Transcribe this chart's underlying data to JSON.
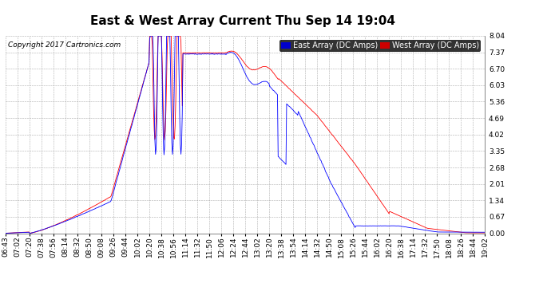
{
  "title": "East & West Array Current Thu Sep 14 19:04",
  "copyright": "Copyright 2017 Cartronics.com",
  "legend_east": "East Array (DC Amps)",
  "legend_west": "West Array (DC Amps)",
  "east_color": "#0000ff",
  "west_color": "#ff0000",
  "legend_east_bg": "#0000cc",
  "legend_west_bg": "#cc0000",
  "ylim": [
    0,
    8.04
  ],
  "yticks": [
    0.0,
    0.67,
    1.34,
    2.01,
    2.68,
    3.35,
    4.02,
    4.69,
    5.36,
    6.03,
    6.7,
    7.37,
    8.04
  ],
  "bg_color": "#ffffff",
  "grid_color": "#999999",
  "title_fontsize": 11,
  "tick_fontsize": 6.5,
  "copyright_fontsize": 6.5,
  "legend_fontsize": 7,
  "figsize": [
    6.9,
    3.75
  ],
  "dpi": 100,
  "x_tick_labels": [
    "06:43",
    "07:02",
    "07:20",
    "07:38",
    "07:56",
    "08:14",
    "08:32",
    "08:50",
    "09:08",
    "09:26",
    "09:44",
    "10:02",
    "10:20",
    "10:38",
    "10:56",
    "11:14",
    "11:32",
    "11:50",
    "12:06",
    "12:24",
    "12:44",
    "13:02",
    "13:20",
    "13:38",
    "13:54",
    "14:14",
    "14:32",
    "14:50",
    "15:08",
    "15:26",
    "15:44",
    "16:02",
    "16:20",
    "16:38",
    "17:14",
    "17:32",
    "17:50",
    "18:08",
    "18:26",
    "18:44",
    "19:02"
  ]
}
